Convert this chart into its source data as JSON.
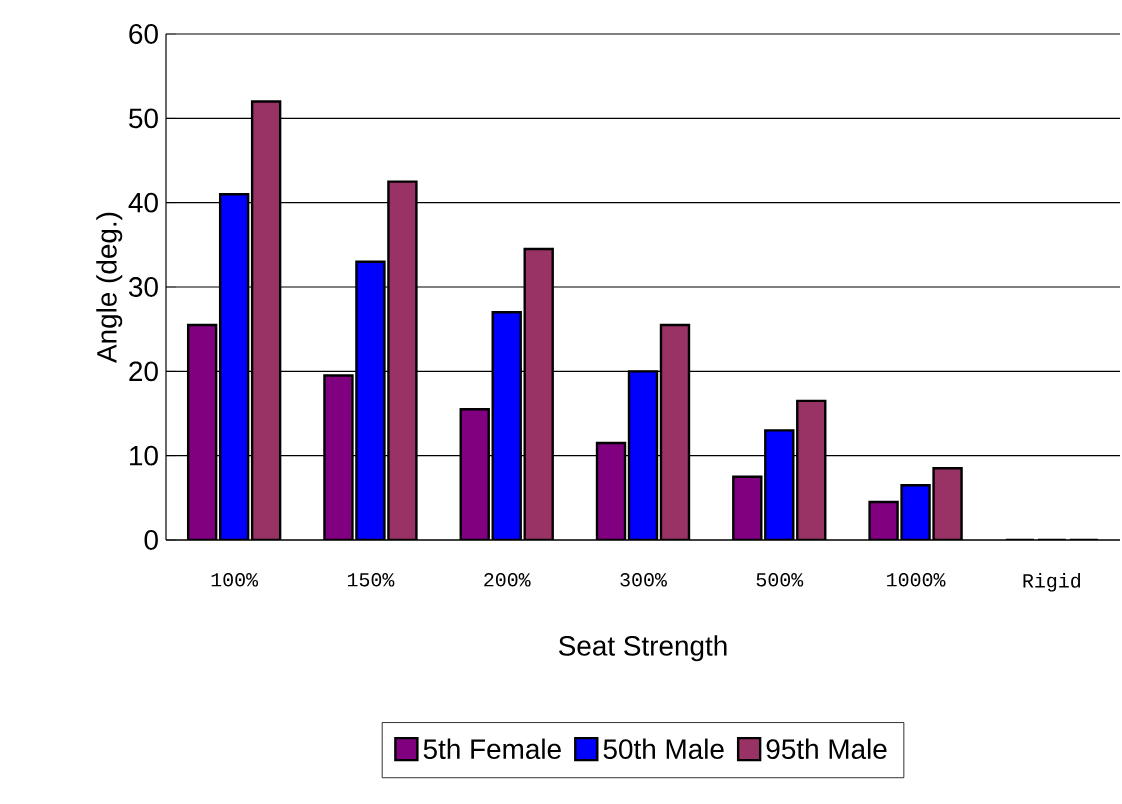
{
  "chart_data": {
    "type": "bar",
    "xlabel": "Seat Strength",
    "ylabel": "Angle (deg.)",
    "categories": [
      "100%",
      "150%",
      "200%",
      "300%",
      "500%",
      "1000%",
      "Rigid"
    ],
    "series": [
      {
        "name": "5th Female",
        "color": "#800080",
        "values": [
          25.5,
          19.5,
          15.5,
          11.5,
          7.5,
          4.5,
          0
        ]
      },
      {
        "name": "50th Male",
        "color": "#0000ff",
        "values": [
          41,
          33,
          27,
          20,
          13,
          6.5,
          0
        ]
      },
      {
        "name": "95th Male",
        "color": "#993366",
        "values": [
          52,
          42.5,
          34.5,
          25.5,
          16.5,
          8.5,
          0
        ]
      }
    ],
    "ylim": [
      0,
      60
    ],
    "yticks": [
      0,
      10,
      20,
      30,
      40,
      50,
      60
    ],
    "grid": "y",
    "legend": "bottom"
  }
}
